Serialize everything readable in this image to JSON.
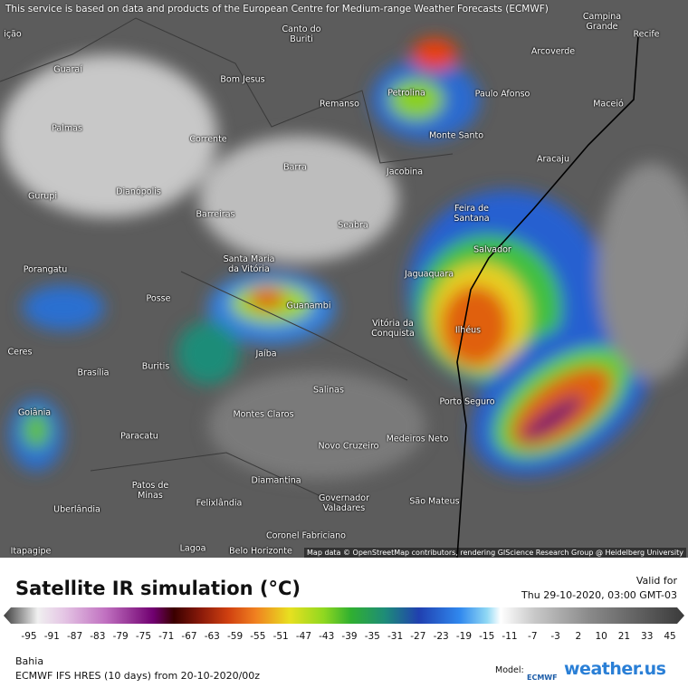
{
  "header": {
    "notice": "This service is based on data and products of the European Centre for Medium-range Weather Forecasts (ECMWF)"
  },
  "map": {
    "attribution": "Map data © OpenStreetMap contributors, rendering GIScience Research Group @ Heidelberg University",
    "cities": [
      "ição",
      "Canto do Buriti",
      "Campina Grande",
      "Recife",
      "Guaraí",
      "Bom Jesus",
      "Arcoverde",
      "Petrolina",
      "Paulo Afonso",
      "Remanso",
      "Maceió",
      "Palmas",
      "Monte Santo",
      "Corrente",
      "Aracaju",
      "Barra",
      "Jacobina",
      "Gurupi",
      "Dianópolis",
      "Feira de Santana",
      "Barreiras",
      "Seabra",
      "Salvador",
      "Porangatu",
      "Santa Maria da Vitória",
      "Jaguaquara",
      "Posse",
      "Guanambi",
      "Vitória da Conquista",
      "Ilhéus",
      "Ceres",
      "Jaíba",
      "Brasília",
      "Buritis",
      "Salinas",
      "Porto Seguro",
      "Goiânia",
      "Montes Claros",
      "Medeiros Neto",
      "Paracatu",
      "Novo Cruzeiro",
      "Diamantina",
      "Patos de Minas",
      "Governador Valadares",
      "São Mateus",
      "Felixlândia",
      "Uberlândia",
      "Coronel Fabriciano",
      "Lagoa",
      "Belo Horizonte",
      "Itapagipe"
    ]
  },
  "legend": {
    "title": "Satellite IR simulation (°C)",
    "valid_label": "Valid for",
    "valid_time": "Thu 29-10-2020, 03:00 GMT-03",
    "ticks": [
      -95,
      -91,
      -87,
      -83,
      -79,
      -75,
      -71,
      -67,
      -63,
      -59,
      -55,
      -51,
      -47,
      -43,
      -39,
      -35,
      -31,
      -27,
      -23,
      -19,
      -15,
      -11,
      -7,
      -3,
      2,
      10,
      21,
      33,
      45
    ]
  },
  "footer": {
    "region": "Bahia",
    "model_run": "ECMWF IFS HRES (10 days) from 20-10-2020/00z",
    "model_label": "Model:",
    "model_logo": "ECMWF",
    "brand": "weather.us"
  }
}
